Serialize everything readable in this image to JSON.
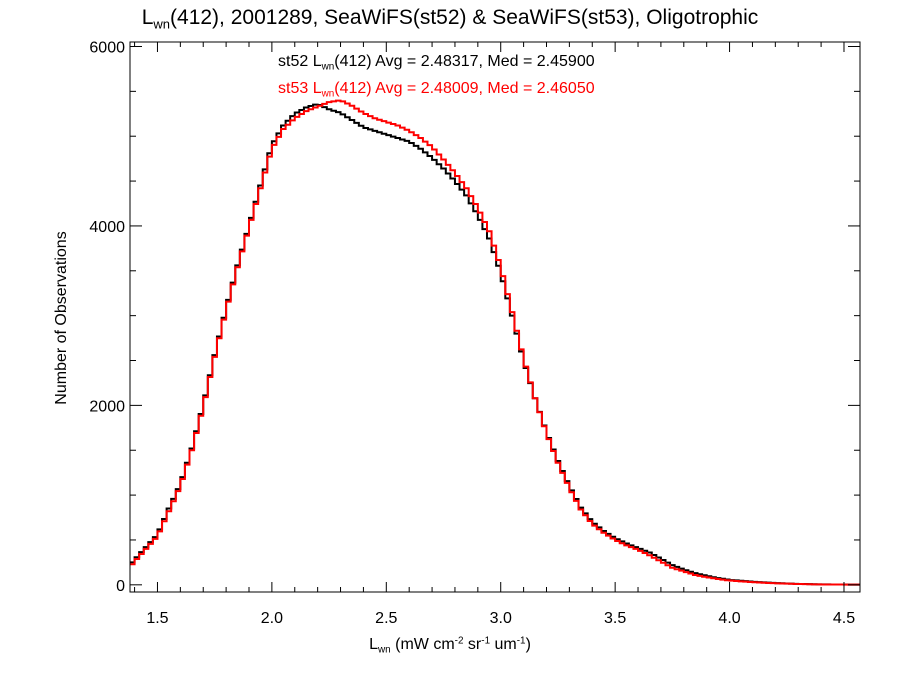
{
  "chart_data": {
    "type": "histogram-line",
    "title": {
      "prefix": "L",
      "sub": "wn",
      "rest": "(412), 2001289, SeaWiFS(st52) & SeaWiFS(st53), Oligotrophic"
    },
    "xlabel": {
      "parts": [
        {
          "t": "L"
        },
        {
          "t": "wn",
          "sub": true
        },
        {
          "t": " (mW cm"
        },
        {
          "t": "-2",
          "sup": true
        },
        {
          "t": " sr"
        },
        {
          "t": "-1",
          "sup": true
        },
        {
          "t": " um"
        },
        {
          "t": "-1",
          "sup": true
        },
        {
          "t": ")"
        }
      ]
    },
    "ylabel": "Number of Observations",
    "xlim": [
      1.38,
      4.57
    ],
    "ylim": [
      -80,
      6050
    ],
    "x_ticks": [
      1.5,
      2.0,
      2.5,
      3.0,
      3.5,
      4.0,
      4.5
    ],
    "x_tick_labels": [
      "1.5",
      "2.0",
      "2.5",
      "3.0",
      "3.5",
      "4.0",
      "4.5"
    ],
    "y_ticks": [
      0,
      2000,
      4000,
      6000
    ],
    "y_tick_labels": [
      "0",
      "2000",
      "4000",
      "6000"
    ],
    "annotations": [
      {
        "pre": "st52 L",
        "sub": "wn",
        "post": "(412) Avg = 2.48317, Med = 2.45900",
        "color": "#000000"
      },
      {
        "pre": "st53 L",
        "sub": "wn",
        "post": "(412) Avg = 2.48009, Med = 2.46050",
        "color": "#ff0000"
      }
    ],
    "bin_width": 0.02,
    "series": [
      {
        "name": "st52",
        "color": "#000000",
        "x": [
          1.38,
          1.4,
          1.45,
          1.5,
          1.55,
          1.6,
          1.65,
          1.7,
          1.75,
          1.8,
          1.85,
          1.9,
          1.95,
          2.0,
          2.05,
          2.1,
          2.15,
          2.2,
          2.25,
          2.3,
          2.35,
          2.4,
          2.45,
          2.5,
          2.55,
          2.6,
          2.65,
          2.7,
          2.75,
          2.8,
          2.85,
          2.9,
          2.95,
          3.0,
          3.05,
          3.1,
          3.15,
          3.2,
          3.25,
          3.3,
          3.35,
          3.4,
          3.45,
          3.5,
          3.55,
          3.6,
          3.65,
          3.7,
          3.75,
          3.8,
          3.85,
          3.9,
          3.95,
          4.0,
          4.1,
          4.2,
          4.3,
          4.4,
          4.57
        ],
        "values": [
          220,
          280,
          420,
          560,
          850,
          1120,
          1520,
          2000,
          2560,
          3080,
          3560,
          4000,
          4450,
          4900,
          5120,
          5250,
          5320,
          5360,
          5300,
          5260,
          5180,
          5100,
          5060,
          5020,
          4980,
          4940,
          4860,
          4760,
          4640,
          4500,
          4340,
          4120,
          3860,
          3480,
          3000,
          2500,
          2080,
          1700,
          1380,
          1100,
          860,
          700,
          600,
          520,
          460,
          410,
          360,
          290,
          220,
          170,
          130,
          100,
          75,
          55,
          35,
          20,
          10,
          5,
          2
        ]
      },
      {
        "name": "st53",
        "color": "#ff0000",
        "x": [
          1.38,
          1.4,
          1.45,
          1.5,
          1.55,
          1.6,
          1.65,
          1.7,
          1.75,
          1.8,
          1.85,
          1.9,
          1.95,
          2.0,
          2.05,
          2.1,
          2.15,
          2.2,
          2.25,
          2.3,
          2.35,
          2.4,
          2.45,
          2.5,
          2.55,
          2.6,
          2.65,
          2.7,
          2.75,
          2.8,
          2.85,
          2.9,
          2.95,
          3.0,
          3.05,
          3.1,
          3.15,
          3.2,
          3.25,
          3.3,
          3.35,
          3.4,
          3.45,
          3.5,
          3.55,
          3.6,
          3.65,
          3.7,
          3.75,
          3.8,
          3.85,
          3.9,
          3.95,
          4.0,
          4.1,
          4.2,
          4.3,
          4.4,
          4.57
        ],
        "values": [
          200,
          260,
          400,
          540,
          820,
          1100,
          1500,
          1980,
          2540,
          3060,
          3540,
          3980,
          4420,
          4860,
          5080,
          5200,
          5280,
          5330,
          5380,
          5400,
          5340,
          5260,
          5200,
          5160,
          5120,
          5060,
          4980,
          4880,
          4740,
          4590,
          4420,
          4200,
          3940,
          3540,
          3040,
          2520,
          2080,
          1690,
          1360,
          1080,
          840,
          680,
          580,
          500,
          440,
          390,
          330,
          260,
          190,
          150,
          110,
          85,
          65,
          48,
          30,
          17,
          9,
          4,
          2
        ]
      }
    ]
  }
}
